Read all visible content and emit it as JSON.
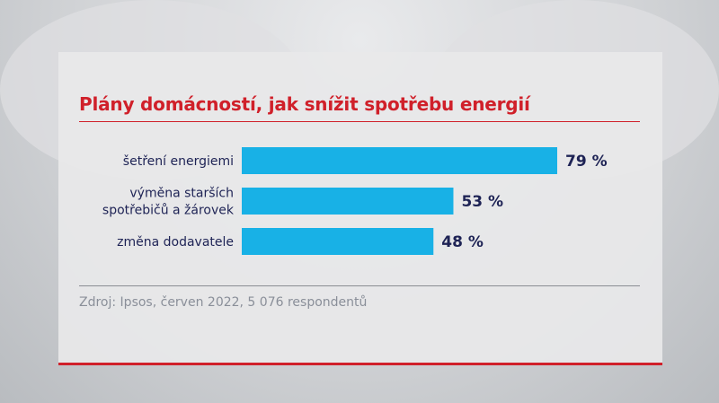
{
  "chart_data": {
    "type": "bar",
    "orientation": "horizontal",
    "title": "Plány domácností, jak snížit spotřebu energií",
    "categories": [
      [
        "šetření energiemi"
      ],
      [
        "výměna starších",
        "spotřebičů a žárovek"
      ],
      [
        "změna dodavatele"
      ]
    ],
    "values": [
      79,
      53,
      48
    ],
    "value_labels": [
      "79 %",
      "53 %",
      "48 %"
    ],
    "xlabel": "",
    "ylabel": "",
    "xlim": [
      0,
      100
    ],
    "grid": false,
    "bar_color": "#18b1e6",
    "source": "Zdroj: Ipsos, červen 2022, 5 076 respondentů"
  },
  "colors": {
    "accent": "#d0202a",
    "text": "#1e2355",
    "source": "#8a8f99"
  }
}
